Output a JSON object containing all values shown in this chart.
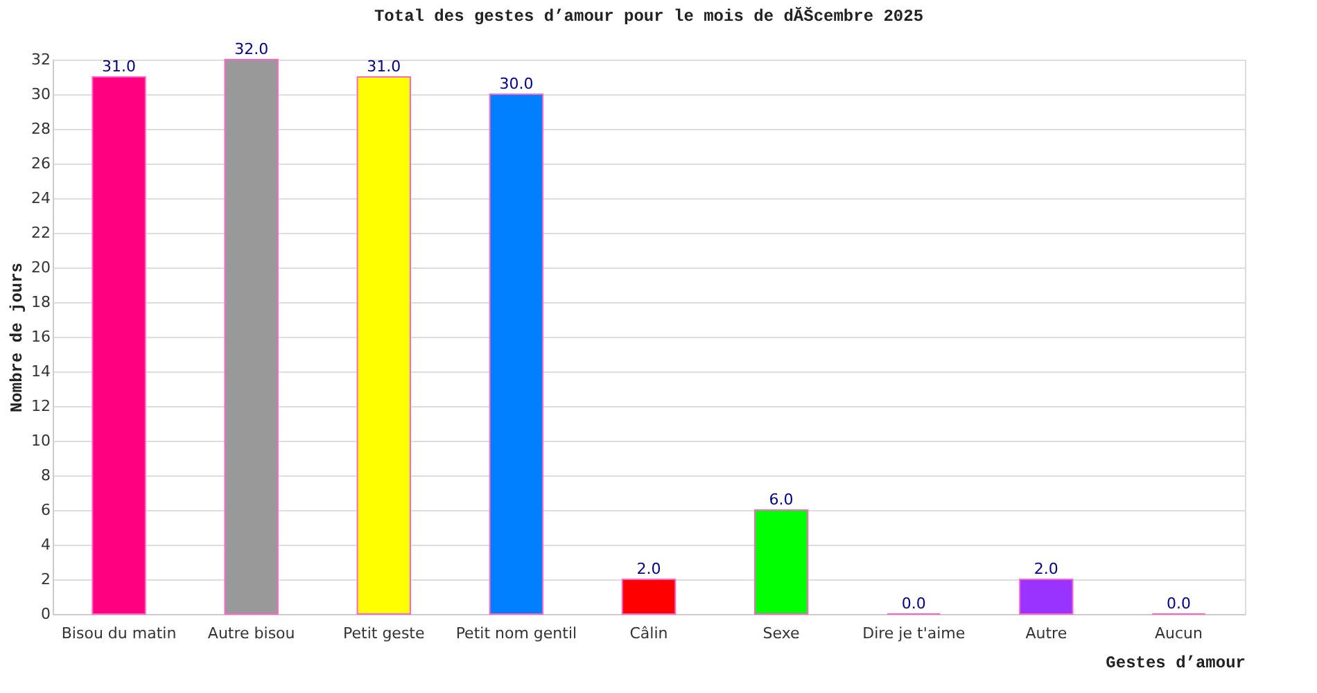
{
  "chart_data": {
    "type": "bar",
    "title": "Total des gestes d’amour pour le mois de dĂŠcembre 2025",
    "xlabel": "Gestes d’amour",
    "ylabel": "Nombre de jours",
    "categories": [
      "Bisou du matin",
      "Autre bisou",
      "Petit geste",
      "Petit nom gentil",
      "Câlin",
      "Sexe",
      "Dire je t'aime",
      "Autre",
      "Aucun"
    ],
    "values": [
      31,
      32,
      31,
      30,
      2,
      6,
      0,
      2,
      0
    ],
    "colors": [
      "#ff0080",
      "#999999",
      "#ffff00",
      "#0080ff",
      "#ff0000",
      "#00ff00",
      "#ff66cc",
      "#9933ff",
      "#ff66cc"
    ],
    "value_labels": [
      "31.0",
      "32.0",
      "31.0",
      "30.0",
      "2.0",
      "6.0",
      "0.0",
      "2.0",
      "0.0"
    ],
    "ylim": [
      0,
      32
    ],
    "yticks": [
      0,
      2,
      4,
      6,
      8,
      10,
      12,
      14,
      16,
      18,
      20,
      22,
      24,
      26,
      28,
      30,
      32
    ],
    "grid": "y"
  }
}
